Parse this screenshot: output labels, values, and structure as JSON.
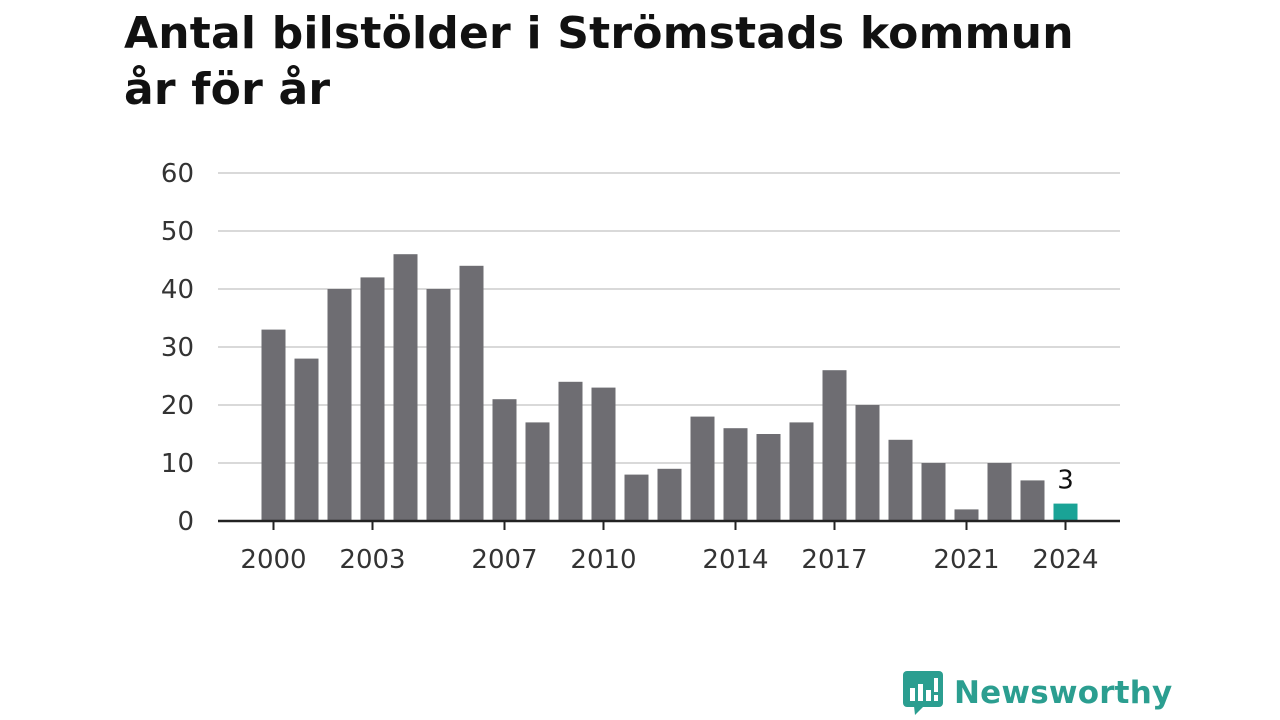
{
  "chart_data": {
    "type": "bar",
    "title": "Antal bilstölder i Strömstads kommun år för år",
    "title_lines": [
      "Antal bilstölder i Strömstads kommun",
      "år för år"
    ],
    "xlabel": "",
    "ylabel": "",
    "categories": [
      2000,
      2001,
      2002,
      2003,
      2004,
      2005,
      2006,
      2007,
      2008,
      2009,
      2010,
      2011,
      2012,
      2013,
      2014,
      2015,
      2016,
      2017,
      2018,
      2019,
      2020,
      2021,
      2022,
      2023,
      2024
    ],
    "values": [
      33,
      28,
      40,
      42,
      46,
      40,
      44,
      21,
      17,
      24,
      23,
      8,
      9,
      18,
      16,
      15,
      17,
      26,
      20,
      14,
      10,
      2,
      10,
      7,
      3
    ],
    "x_ticks": [
      "2000",
      "2003",
      "2007",
      "2010",
      "2014",
      "2017",
      "2021",
      "2024"
    ],
    "y_ticks": [
      "0",
      "10",
      "20",
      "30",
      "40",
      "50",
      "60"
    ],
    "ylim": [
      0,
      60
    ],
    "grid": true,
    "highlight": {
      "category": 2024,
      "label": "3"
    },
    "colors": {
      "bar": "#6e6d72",
      "highlight": "#1aa396",
      "grid": "#d9d9d9",
      "axis": "#222222"
    }
  },
  "brand": {
    "name": "Newsworthy",
    "icon": "newsworthy-logo-icon",
    "color": "#2b9e90"
  }
}
